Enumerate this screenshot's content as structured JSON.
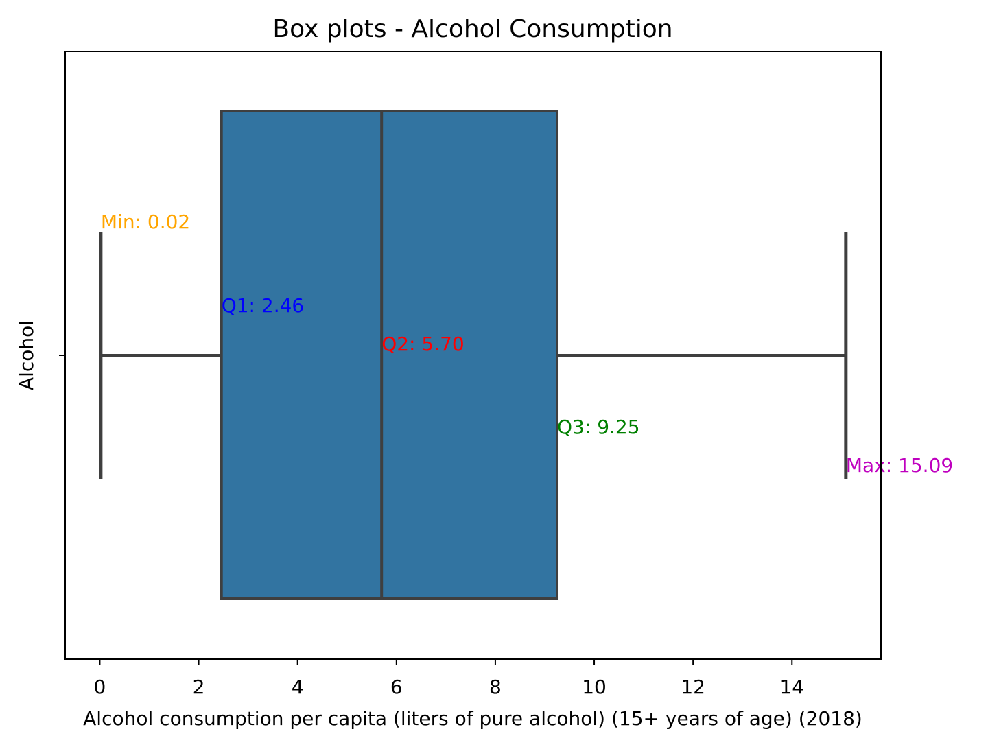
{
  "chart_data": {
    "type": "box",
    "title": "Box plots - Alcohol Consumption",
    "xlabel": "Alcohol consumption per capita (liters of pure alcohol) (15+ years of age) (2018)",
    "ylabel": "Alcohol",
    "xlim": [
      -0.7,
      15.8
    ],
    "x_ticks": [
      0,
      2,
      4,
      6,
      8,
      10,
      12,
      14
    ],
    "x_tick_labels": [
      "0",
      "2",
      "4",
      "6",
      "8",
      "10",
      "12",
      "14"
    ],
    "grid": false,
    "box_color": "#3274a1",
    "line_color": "#3f3f3f",
    "stats": {
      "min": 0.02,
      "q1": 2.46,
      "median": 5.7,
      "q3": 9.25,
      "max": 15.09
    },
    "annotations": [
      {
        "key": "min",
        "text": "Min: 0.02",
        "x": 0.02,
        "color": "#ffa500"
      },
      {
        "key": "q1",
        "text": "Q1: 2.46",
        "x": 2.46,
        "color": "#0000ff"
      },
      {
        "key": "q2",
        "text": "Q2: 5.70",
        "x": 5.7,
        "color": "#ff0000"
      },
      {
        "key": "q3",
        "text": "Q3: 9.25",
        "x": 9.25,
        "color": "#008000"
      },
      {
        "key": "max",
        "text": "Max: 15.09",
        "x": 15.09,
        "color": "#bf00bf"
      }
    ]
  }
}
